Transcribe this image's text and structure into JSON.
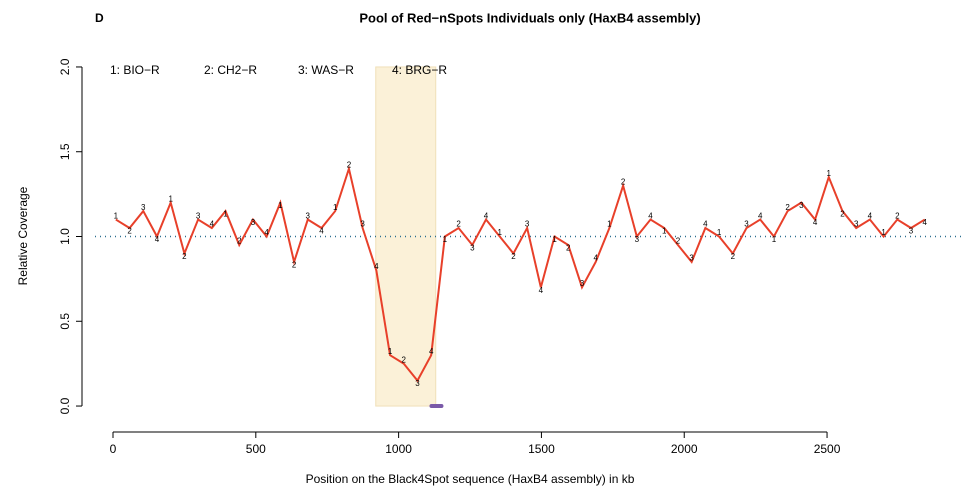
{
  "chart_data": {
    "type": "line",
    "panel_label": "D",
    "title": "Pool of Red−nSpots Individuals only (HaxB4 assembly)",
    "x_label": "Position on the Black4Spot sequence (HaxB4 assembly) in kb",
    "y_label": "Relative Coverage",
    "xlim": [
      -63,
      2983
    ],
    "ylim": [
      -0.08,
      2.08
    ],
    "xticks": [
      0,
      500,
      1000,
      1500,
      2000,
      2500
    ],
    "yticks": [
      {
        "value": 0,
        "label": "0.0"
      },
      {
        "value": 0.5,
        "label": "0.5"
      },
      {
        "value": 1,
        "label": "1.0"
      },
      {
        "value": 1.5,
        "label": "1.5"
      },
      {
        "value": 2,
        "label": "2.0"
      }
    ],
    "color": "#e8402a",
    "x": [
      10,
      58,
      106,
      154,
      202,
      250,
      298,
      346,
      394,
      442,
      490,
      538,
      586,
      634,
      682,
      730,
      778,
      826,
      874,
      922,
      970,
      1018,
      1066,
      1114,
      1162,
      1210,
      1258,
      1306,
      1354,
      1402,
      1450,
      1498,
      1546,
      1594,
      1642,
      1690,
      1738,
      1786,
      1834,
      1882,
      1930,
      1978,
      2026,
      2074,
      2122,
      2170,
      2218,
      2266,
      2314,
      2362,
      2410,
      2458,
      2506,
      2554,
      2602,
      2650,
      2698,
      2746,
      2794,
      2842
    ],
    "values": [
      1.1,
      1.05,
      1.15,
      1.0,
      1.2,
      0.9,
      1.1,
      1.05,
      1.15,
      0.95,
      1.1,
      1.0,
      1.2,
      0.85,
      1.1,
      1.05,
      1.15,
      1.4,
      1.05,
      0.8,
      0.3,
      0.25,
      0.15,
      0.3,
      1.0,
      1.05,
      0.95,
      1.1,
      1.0,
      0.9,
      1.05,
      0.7,
      1.0,
      0.95,
      0.7,
      0.85,
      1.05,
      1.3,
      1.0,
      1.1,
      1.05,
      0.95,
      0.85,
      1.05,
      1.0,
      0.9,
      1.05,
      1.1,
      1.0,
      1.15,
      1.2,
      1.1,
      1.35,
      1.15,
      1.05,
      1.1,
      1.0,
      1.1,
      1.05,
      1.1
    ],
    "series": [
      {
        "name": "1: BIO−R",
        "marker": "1",
        "color": "#e06a50",
        "x": [
          10,
          202,
          394,
          586,
          778,
          970,
          1162,
          1354,
          1546,
          1738,
          1930,
          2122,
          2314,
          2506,
          2698
        ],
        "values": [
          1.12,
          1.22,
          1.13,
          1.18,
          1.17,
          0.32,
          0.98,
          1.02,
          0.98,
          1.07,
          1.03,
          1.02,
          0.98,
          1.37,
          1.02
        ]
      },
      {
        "name": "2: CH2−R",
        "marker": "2",
        "color": "#e06a50",
        "x": [
          58,
          250,
          442,
          634,
          826,
          1018,
          1210,
          1402,
          1594,
          1786,
          1978,
          2170,
          2362,
          2554,
          2746
        ],
        "values": [
          1.03,
          0.88,
          0.97,
          0.83,
          1.42,
          0.27,
          1.07,
          0.88,
          0.93,
          1.32,
          0.97,
          0.88,
          1.17,
          1.13,
          1.12
        ]
      },
      {
        "name": "3: WAS−R",
        "marker": "3",
        "color": "#e06a50",
        "x": [
          106,
          298,
          490,
          682,
          874,
          1066,
          1258,
          1450,
          1642,
          1834,
          2026,
          2218,
          2410,
          2602,
          2794
        ],
        "values": [
          1.17,
          1.12,
          1.08,
          1.12,
          1.07,
          0.13,
          0.93,
          1.07,
          0.72,
          0.98,
          0.87,
          1.07,
          1.18,
          1.07,
          1.03
        ]
      },
      {
        "name": "4: BRG−R",
        "marker": "4",
        "color": "#e06a50",
        "x": [
          154,
          346,
          538,
          730,
          922,
          1114,
          1306,
          1498,
          1690,
          1882,
          2074,
          2266,
          2458,
          2650,
          2842
        ],
        "values": [
          0.98,
          1.07,
          1.02,
          1.03,
          0.82,
          0.32,
          1.12,
          0.68,
          0.87,
          1.12,
          1.07,
          1.12,
          1.08,
          1.12,
          1.08
        ]
      }
    ],
    "highlight": [
      920,
      1130
    ],
    "highlight_color": "#fbf1d8",
    "hline": 1,
    "hline_color": "#2a6f8f",
    "segment": {
      "x": [
        1115,
        1150
      ],
      "y": 0,
      "color": "#7a5aa8"
    }
  }
}
